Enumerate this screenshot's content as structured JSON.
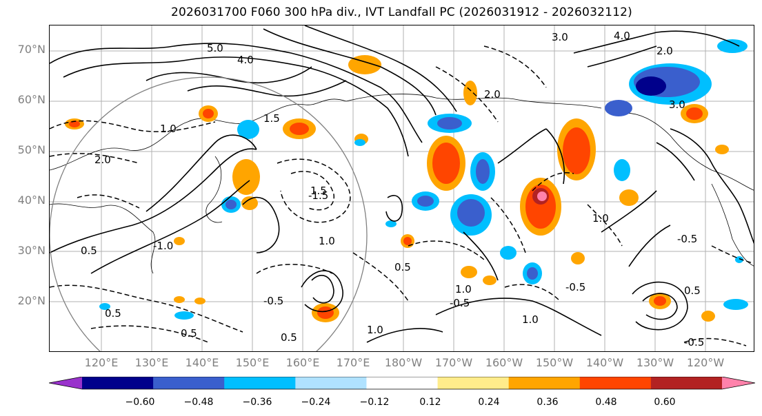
{
  "title": "2026031700 F060 300 hPa div., IVT Landfall PC (2026031912 - 2026032112)",
  "lat_labels": [
    "70°N",
    "60°N",
    "50°N",
    "40°N",
    "30°N",
    "20°N"
  ],
  "lon_labels": [
    "120°E",
    "130°E",
    "140°E",
    "150°E",
    "160°E",
    "170°E",
    "180°W",
    "170°W",
    "160°W",
    "150°W",
    "140°W",
    "130°W",
    "120°W"
  ],
  "colorbar": {
    "colors": [
      "#9932cc",
      "#00008b",
      "#3a5fcd",
      "#00bfff",
      "#b0e2ff",
      "#ffffff",
      "#ffec8b",
      "#ffa500",
      "#ff4500",
      "#b22222",
      "#ff82ab"
    ],
    "ticks": [
      "−0.60",
      "−0.48",
      "−0.36",
      "−0.24",
      "−0.12",
      "0.12",
      "0.24",
      "0.36",
      "0.48",
      "0.60"
    ]
  },
  "contour_labels": [
    "5.0",
    "4.0",
    "4.0",
    "3.0",
    "3.0",
    "2.0",
    "2.0",
    "2.0",
    "1.5",
    "1.5",
    "1.0",
    "1.0",
    "1.0",
    "1.0",
    "1.0",
    "1.0",
    "0.5",
    "0.5",
    "0.5",
    "0.5",
    "0.5",
    "0.5",
    "-0.5",
    "-0.5",
    "-0.5",
    "-0.5",
    "-1.0",
    "-1.5",
    "-0.5"
  ]
}
